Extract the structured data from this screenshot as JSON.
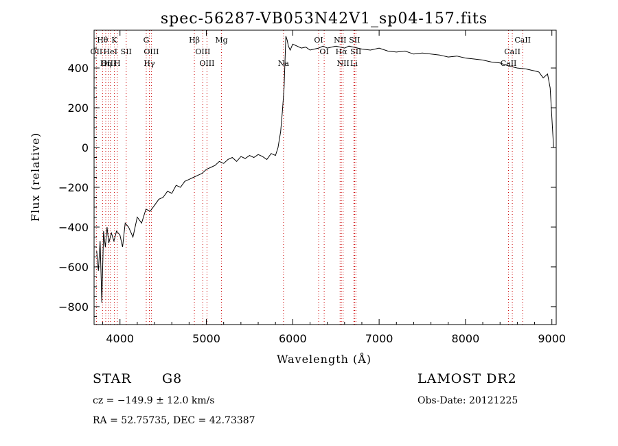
{
  "chart_data": {
    "type": "line",
    "title": "spec-56287-VB053N42V1_sp04-157.fits",
    "xlabel": "Wavelength (Å)",
    "ylabel": "Flux (relative)",
    "xlim": [
      3700,
      9050
    ],
    "ylim": [
      -890,
      590
    ],
    "xticks": [
      4000,
      5000,
      6000,
      7000,
      8000,
      9000
    ],
    "yticks": [
      -800,
      -600,
      -400,
      -200,
      0,
      200,
      400
    ],
    "grid": false,
    "line_color": "#000000",
    "marker_color": "#cc0000",
    "series": [
      {
        "name": "",
        "x": [
          3730,
          3750,
          3770,
          3790,
          3810,
          3830,
          3850,
          3870,
          3900,
          3930,
          3960,
          4000,
          4030,
          4060,
          4100,
          4150,
          4200,
          4250,
          4300,
          4350,
          4400,
          4450,
          4500,
          4550,
          4600,
          4650,
          4700,
          4750,
          4800,
          4850,
          4900,
          4950,
          5000,
          5050,
          5100,
          5150,
          5200,
          5250,
          5300,
          5350,
          5400,
          5450,
          5500,
          5550,
          5600,
          5650,
          5700,
          5750,
          5800,
          5830,
          5860,
          5880,
          5900,
          5920,
          5935,
          5950,
          5970,
          6000,
          6050,
          6100,
          6150,
          6200,
          6250,
          6300,
          6350,
          6400,
          6450,
          6500,
          6550,
          6600,
          6650,
          6700,
          6800,
          6900,
          7000,
          7100,
          7200,
          7300,
          7400,
          7500,
          7600,
          7700,
          7800,
          7900,
          8000,
          8100,
          8200,
          8300,
          8400,
          8500,
          8600,
          8700,
          8800,
          8850,
          8900,
          8950,
          8980,
          9000,
          9020
        ],
        "y": [
          -520,
          -620,
          -470,
          -780,
          -420,
          -500,
          -400,
          -480,
          -430,
          -470,
          -420,
          -440,
          -500,
          -380,
          -400,
          -450,
          -350,
          -380,
          -310,
          -320,
          -290,
          -260,
          -250,
          -220,
          -230,
          -190,
          -200,
          -170,
          -160,
          -150,
          -140,
          -130,
          -110,
          -100,
          -90,
          -70,
          -80,
          -60,
          -50,
          -70,
          -45,
          -55,
          -40,
          -50,
          -35,
          -45,
          -60,
          -30,
          -40,
          0,
          80,
          180,
          300,
          560,
          540,
          510,
          490,
          520,
          510,
          500,
          505,
          490,
          495,
          500,
          510,
          500,
          505,
          510,
          505,
          500,
          510,
          505,
          495,
          490,
          500,
          485,
          480,
          485,
          470,
          475,
          470,
          465,
          455,
          460,
          450,
          445,
          440,
          430,
          425,
          410,
          400,
          395,
          385,
          380,
          350,
          370,
          300,
          150,
          0
        ]
      }
    ],
    "lines": [
      {
        "label": "Hθ",
        "x": 3798,
        "row": 1
      },
      {
        "label": "OII",
        "x": 3727,
        "row": 2
      },
      {
        "label": "OIII",
        "x": 3869,
        "row": 3
      },
      {
        "label": "K",
        "x": 3934,
        "row": 1
      },
      {
        "label": "H",
        "x": 3969,
        "row": 3
      },
      {
        "label": "HeI",
        "x": 3889,
        "row": 2
      },
      {
        "label": "Hη",
        "x": 3835,
        "row": 3
      },
      {
        "label": "SII",
        "x": 4072,
        "row": 2
      },
      {
        "label": "G",
        "x": 4304,
        "row": 1
      },
      {
        "label": "OIII",
        "x": 4363,
        "row": 2
      },
      {
        "label": "Hγ",
        "x": 4340,
        "row": 3
      },
      {
        "label": "Hβ",
        "x": 4861,
        "row": 1
      },
      {
        "label": "OIII",
        "x": 4959,
        "row": 2
      },
      {
        "label": "OIII",
        "x": 5007,
        "row": 3
      },
      {
        "label": "Mg",
        "x": 5175,
        "row": 1
      },
      {
        "label": "Na",
        "x": 5893,
        "row": 3
      },
      {
        "label": "OI",
        "x": 6300,
        "row": 1
      },
      {
        "label": "OI",
        "x": 6364,
        "row": 2
      },
      {
        "label": "NII",
        "x": 6548,
        "row": 1
      },
      {
        "label": "Hα",
        "x": 6563,
        "row": 2
      },
      {
        "label": "NII",
        "x": 6583,
        "row": 3
      },
      {
        "label": "SII",
        "x": 6716,
        "row": 1
      },
      {
        "label": "SII",
        "x": 6731,
        "row": 2
      },
      {
        "label": "Li",
        "x": 6708,
        "row": 3
      },
      {
        "label": "CaII",
        "x": 8662,
        "row": 1
      },
      {
        "label": "CaII",
        "x": 8542,
        "row": 2
      },
      {
        "label": "CaII",
        "x": 8498,
        "row": 3
      }
    ]
  },
  "info": {
    "class_label": "STAR",
    "subclass": "G8",
    "survey": "LAMOST DR2",
    "cz": "cz = −149.9 ± 12.0 km/s",
    "obs_date": "Obs-Date: 20121225",
    "coords": "RA =  52.75735, DEC =  42.73387"
  }
}
